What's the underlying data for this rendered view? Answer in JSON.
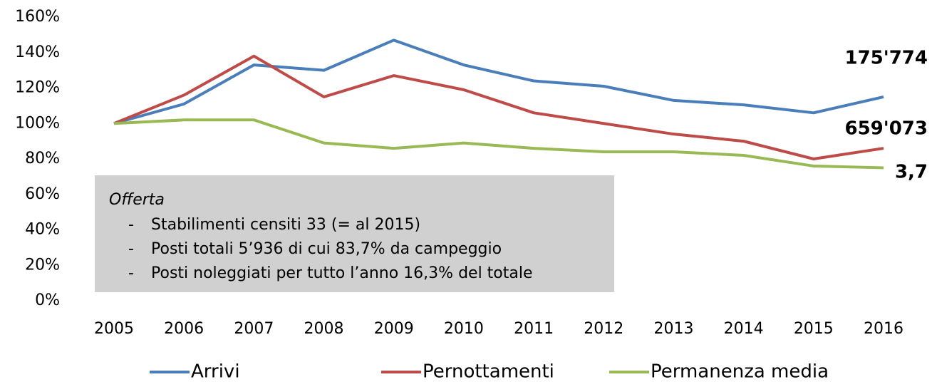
{
  "chart_data": {
    "type": "line",
    "categories": [
      "2005",
      "2006",
      "2007",
      "2008",
      "2009",
      "2010",
      "2011",
      "2012",
      "2013",
      "2014",
      "2015",
      "2016"
    ],
    "series": [
      {
        "name": "Arrivi",
        "color": "#4a7ebb",
        "values": [
          100,
          111,
          133,
          130,
          147,
          133,
          124,
          121,
          113,
          110.5,
          106,
          115
        ],
        "end_label": "175'774"
      },
      {
        "name": "Pernottamenti",
        "color": "#be4b48",
        "values": [
          100,
          116,
          138,
          115,
          127,
          119,
          106,
          100,
          94,
          90,
          80,
          86
        ],
        "end_label": "659'073"
      },
      {
        "name": "Permanenza media",
        "color": "#98b954",
        "values": [
          100,
          102,
          102,
          89,
          86,
          89,
          86,
          84,
          84,
          82,
          76,
          75
        ],
        "end_label": "3,7"
      }
    ],
    "ylim": [
      0,
      160
    ],
    "yticks": [
      {
        "value": 0,
        "label": "0%"
      },
      {
        "value": 20,
        "label": "20%"
      },
      {
        "value": 40,
        "label": "40%"
      },
      {
        "value": 60,
        "label": "60%"
      },
      {
        "value": 80,
        "label": "80%"
      },
      {
        "value": 100,
        "label": "100%"
      },
      {
        "value": 120,
        "label": "120%"
      },
      {
        "value": 140,
        "label": "140%"
      },
      {
        "value": 160,
        "label": "160%"
      }
    ],
    "legend": "bottom",
    "note": {
      "title": "Offerta",
      "items": [
        "Stabilimenti censiti 33 (= al 2015)",
        "Posti totali 5’936 di cui 83,7% da campeggio",
        "Posti noleggiati per tutto l’anno 16,3% del totale"
      ],
      "bullet": "-"
    }
  }
}
